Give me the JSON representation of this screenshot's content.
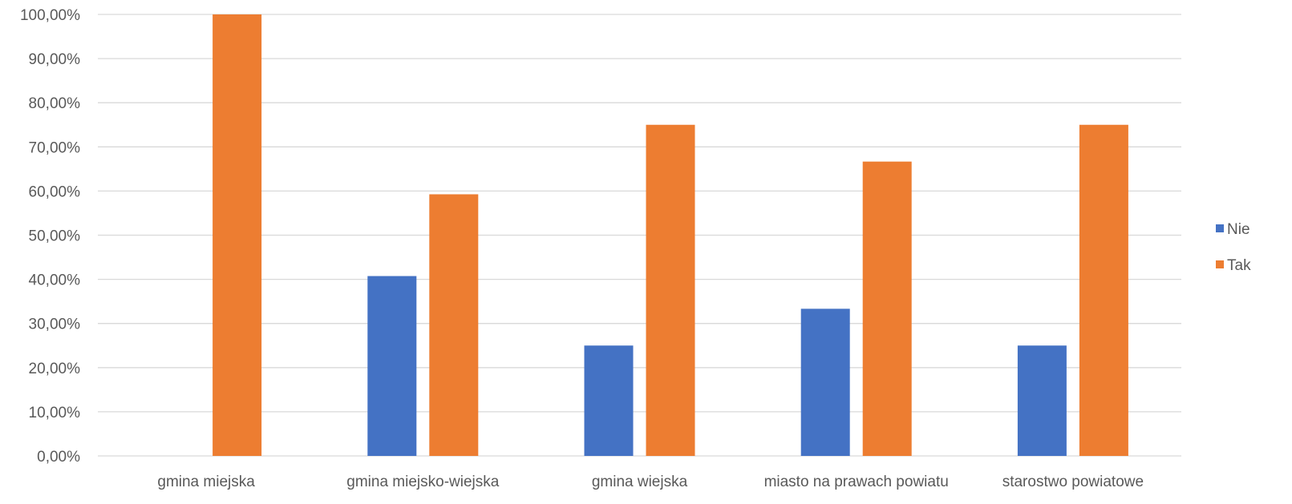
{
  "chart_data": {
    "type": "bar",
    "title": "",
    "xlabel": "",
    "ylabel": "",
    "ylim": [
      0,
      100
    ],
    "y_tick_step": 10,
    "y_tick_labels": [
      "0,00%",
      "10,00%",
      "20,00%",
      "30,00%",
      "40,00%",
      "50,00%",
      "60,00%",
      "70,00%",
      "80,00%",
      "90,00%",
      "100,00%"
    ],
    "grid": true,
    "legend_position": "right",
    "categories": [
      "gmina miejska",
      "gmina miejsko-wiejska",
      "gmina wiejska",
      "miasto na prawach powiatu",
      "starostwo powiatowe"
    ],
    "series": [
      {
        "name": "Nie",
        "color": "#4472C4",
        "values": [
          0,
          40.74,
          25,
          33.33,
          25
        ]
      },
      {
        "name": "Tak",
        "color": "#ED7D31",
        "values": [
          100,
          59.26,
          75,
          66.67,
          75
        ]
      }
    ]
  },
  "colors": {
    "gridline": "#D9D9D9",
    "axis_text": "#595959"
  }
}
